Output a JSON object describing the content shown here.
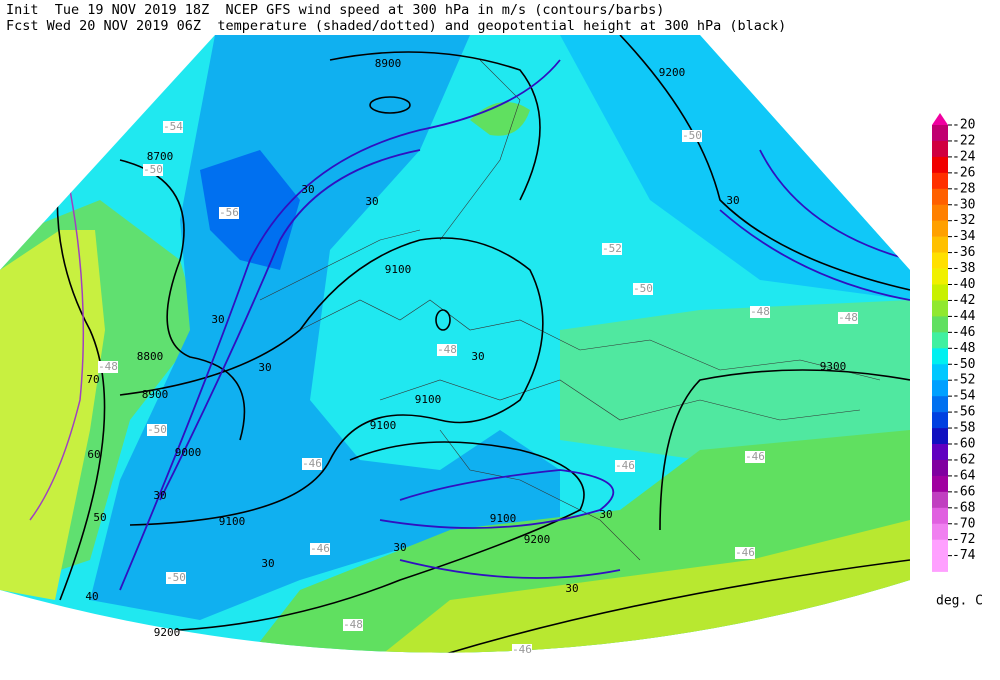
{
  "header": {
    "line1": "Init  Tue 19 NOV 2019 18Z  NCEP GFS wind speed at 300 hPa in m/s (contours/barbs)",
    "line2": "Fcst Wed 20 NOV 2019 06Z  temperature (shaded/dotted) and geopotential height at 300 hPa (black)"
  },
  "map": {
    "height_labels": [
      "8900",
      "8700",
      "9100",
      "8800",
      "8900",
      "9000",
      "9100",
      "9200",
      "9100",
      "9100",
      "9300",
      "9200",
      "9100",
      "9200"
    ],
    "temperature_labels": [
      "-54",
      "-50",
      "-56",
      "-48",
      "-48",
      "-50",
      "-46",
      "-46",
      "-46",
      "-48",
      "-48",
      "-50",
      "-50",
      "-52",
      "-46",
      "-50",
      "-48",
      "-46",
      "-46"
    ],
    "wind_labels": [
      "30",
      "30",
      "30",
      "30",
      "30",
      "30",
      "30",
      "30",
      "30",
      "30",
      "30",
      "40",
      "50",
      "60",
      "70"
    ]
  },
  "legend": {
    "labels": [
      "-20",
      "-22",
      "-24",
      "-26",
      "-28",
      "-30",
      "-32",
      "-34",
      "-36",
      "-38",
      "-40",
      "-42",
      "-44",
      "-46",
      "-48",
      "-50",
      "-52",
      "-54",
      "-56",
      "-58",
      "-60",
      "-62",
      "-64",
      "-66",
      "-68",
      "-70",
      "-72",
      "-74"
    ],
    "colors": [
      "#f000a0",
      "#c00070",
      "#d00040",
      "#f00000",
      "#ff3000",
      "#ff6000",
      "#ff8000",
      "#ffa000",
      "#ffc000",
      "#ffe000",
      "#f0f000",
      "#c8f000",
      "#90e830",
      "#60e060",
      "#40f0a0",
      "#00f0f0",
      "#00c8ff",
      "#00a0ff",
      "#0070f0",
      "#0040e0",
      "#1010c0",
      "#6000c0",
      "#8000a0",
      "#a000a0",
      "#c040c0",
      "#e060e0",
      "#f080f0",
      "#ffa0ff"
    ],
    "unit": "deg. C"
  }
}
